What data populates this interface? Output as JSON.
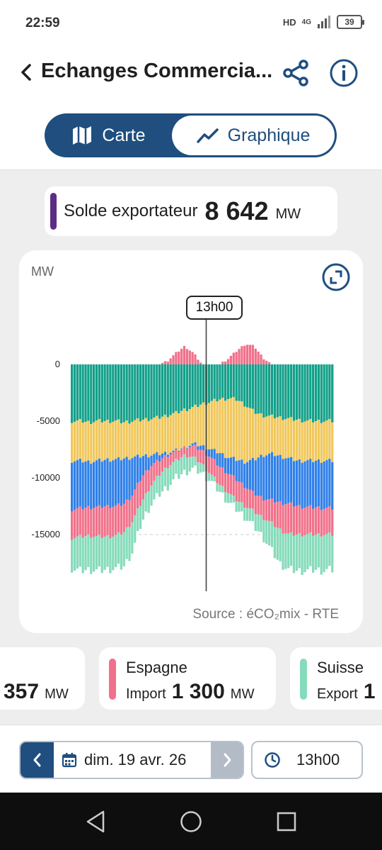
{
  "status": {
    "time": "22:59",
    "net": "HD",
    "net2": "4G",
    "battery": "39"
  },
  "header": {
    "title": "Echanges Commercia...",
    "back_icon": "chevron-left-icon",
    "share_icon": "share-icon",
    "info_icon": "info-icon"
  },
  "tabs": [
    {
      "label": "Carte",
      "icon": "map-icon",
      "active": false
    },
    {
      "label": "Graphique",
      "icon": "chart-line-icon",
      "active": true
    }
  ],
  "solde": {
    "label": "Solde exportateur",
    "value": "8 642",
    "unit": "MW",
    "color": "#5b2d86"
  },
  "chart": {
    "unit_label": "MW",
    "cursor_label": "13h00",
    "source": "Source : éCO₂mix - RTE",
    "y_ticks": [
      "0",
      "-5000",
      "-10000",
      "-15000"
    ]
  },
  "chart_data": {
    "type": "bar",
    "stacked": true,
    "ylabel": "MW",
    "ylim": [
      -18500,
      2000
    ],
    "x_hours": [
      0,
      24
    ],
    "cursor_hour": 13,
    "colors": {
      "teal": "#13a08a",
      "yellow": "#f0c75a",
      "blue": "#2f80e8",
      "pink": "#f1718a",
      "mint": "#86dbbb"
    },
    "series_profile": {
      "bottom_of_teal": [
        -5000,
        -5000,
        -5100,
        -5000,
        -5000,
        -5000,
        -5100,
        -5000,
        -4900,
        -4800,
        -4700,
        -4500,
        -4300,
        -4000,
        -3800,
        -3500,
        -3300,
        -3100,
        -3000,
        -3100,
        -3600,
        -4200,
        -4500,
        -4600,
        -4700,
        -4800,
        -4900,
        -5000,
        -5000,
        -5000,
        -5000
      ],
      "bottom_of_yellow": [
        -8500,
        -8500,
        -8600,
        -8500,
        -8400,
        -8400,
        -8300,
        -8200,
        -8100,
        -8000,
        -7900,
        -7800,
        -7600,
        -7300,
        -7000,
        -7200,
        -7500,
        -7800,
        -8200,
        -8400,
        -8600,
        -8400,
        -8000,
        -7900,
        -8100,
        -8300,
        -8500,
        -8500,
        -8500,
        -8500,
        -8500
      ],
      "bottom_of_blue": [
        -12800,
        -12700,
        -12600,
        -12600,
        -12500,
        -12500,
        -12300,
        -11500,
        -10000,
        -9000,
        -8500,
        -8000,
        -7700,
        -7300,
        -7200,
        -7600,
        -8200,
        -9000,
        -9600,
        -10200,
        -10800,
        -11400,
        -11800,
        -12000,
        -12200,
        -12300,
        -12500,
        -12600,
        -12600,
        -12700,
        -12700
      ],
      "bottom_of_pink": [
        -15300,
        -15200,
        -15100,
        -15200,
        -15200,
        -15100,
        -14800,
        -13800,
        -12200,
        -10800,
        -9800,
        -9000,
        -8500,
        -8000,
        -8200,
        -8800,
        -9700,
        -10600,
        -11300,
        -12000,
        -12500,
        -13000,
        -13500,
        -14000,
        -14600,
        -15000,
        -15000,
        -15000,
        -15000,
        -15000,
        -15000
      ],
      "bottom_of_mint": [
        -18000,
        -18200,
        -18100,
        -18200,
        -18100,
        -18000,
        -17800,
        -16500,
        -14000,
        -12500,
        -11500,
        -10800,
        -10000,
        -9500,
        -9200,
        -9600,
        -10300,
        -11200,
        -12100,
        -12800,
        -13500,
        -14300,
        -15200,
        -16400,
        -17600,
        -18100,
        -18200,
        -18200,
        -18100,
        -18200,
        -18100
      ],
      "positive_pink": [
        0,
        0,
        0,
        0,
        0,
        0,
        0,
        0,
        0,
        0,
        0,
        300,
        1000,
        1600,
        1000,
        0,
        0,
        0,
        500,
        1200,
        1800,
        1600,
        600,
        0,
        0,
        0,
        0,
        0,
        0,
        0,
        0
      ]
    }
  },
  "cards": [
    {
      "name": "",
      "kind": "",
      "value": "357",
      "unit": "MW",
      "color": ""
    },
    {
      "name": "Espagne",
      "kind": "Import",
      "value": "1 300",
      "unit": "MW",
      "color": "#f1718a"
    },
    {
      "name": "Suisse",
      "kind": "Export",
      "value": "1",
      "unit": "",
      "color": "#86dbbb"
    }
  ],
  "bottom": {
    "date": "dim. 19 avr. 26",
    "time": "13h00",
    "calendar_icon": "calendar-icon",
    "clock_icon": "clock-icon"
  }
}
